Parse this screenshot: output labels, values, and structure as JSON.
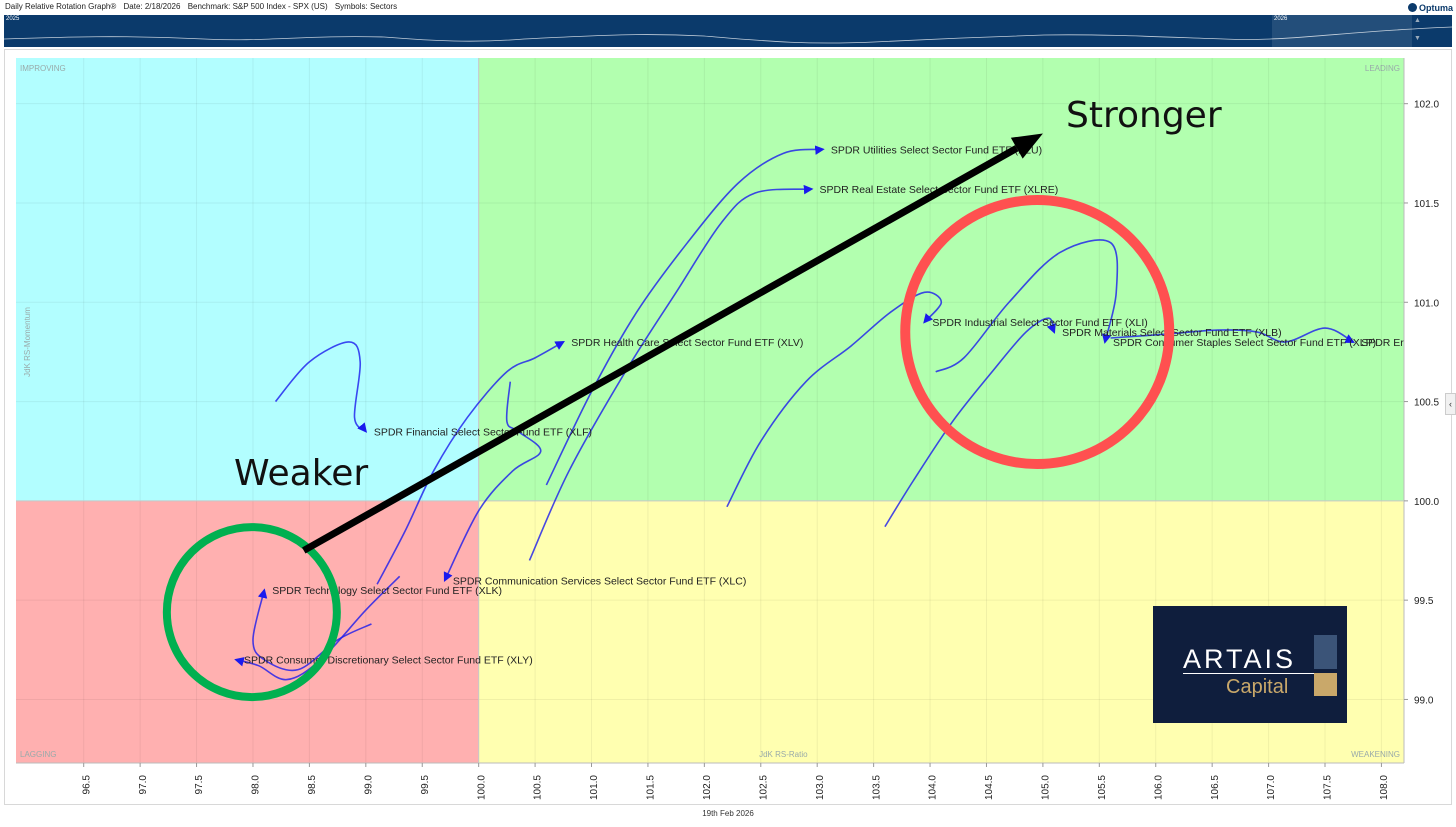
{
  "header": {
    "title": "Daily Relative Rotation Graph®",
    "date": "Date: 2/18/2026",
    "benchmark": "Benchmark: S&P 500 Index - SPX (US)",
    "symbols": "Symbols: Sectors",
    "logo_text": "Optuma"
  },
  "navigator": {
    "year_left": "2025",
    "year_right": "2026",
    "background": "#0b3a6b"
  },
  "chart_data": {
    "type": "scatter",
    "subtype": "relative-rotation-graph",
    "xlabel": "JdK RS-Ratio",
    "ylabel": "JdK RS-Momentum",
    "xlim": [
      95.9,
      108.2
    ],
    "ylim": [
      98.68,
      102.23
    ],
    "xticks": [
      "96.5",
      "97.0",
      "97.5",
      "98.0",
      "98.5",
      "99.0",
      "99.5",
      "100.0",
      "100.5",
      "101.0",
      "101.5",
      "102.0",
      "102.5",
      "103.0",
      "103.5",
      "104.0",
      "104.5",
      "105.0",
      "105.5",
      "106.0",
      "106.5",
      "107.0",
      "107.5",
      "108.0"
    ],
    "yticks": [
      "102.0",
      "101.5",
      "101.0",
      "100.5",
      "100.0",
      "99.5",
      "99.0"
    ],
    "quadrants": {
      "improving": {
        "label": "IMPROVING",
        "color": "#b2feff"
      },
      "leading": {
        "label": "LEADING",
        "color": "#b2ffaf"
      },
      "lagging": {
        "label": "LAGGING",
        "color": "#ffb0b0"
      },
      "weakening": {
        "label": "WEAKENING",
        "color": "#ffffb0"
      }
    },
    "tail_color": "#1a1aee",
    "series": [
      {
        "name": "SPDR Utilities Select Sector Fund ETF (XLU)",
        "tail": [
          [
            100.6,
            100.08
          ],
          [
            101.0,
            100.55
          ],
          [
            101.4,
            100.95
          ],
          [
            101.85,
            101.3
          ],
          [
            102.3,
            101.6
          ],
          [
            102.7,
            101.75
          ],
          [
            103.05,
            101.77
          ]
        ]
      },
      {
        "name": "SPDR Real Estate Select Sector Fund ETF (XLRE)",
        "tail": [
          [
            100.45,
            99.7
          ],
          [
            100.8,
            100.15
          ],
          [
            101.3,
            100.65
          ],
          [
            101.75,
            101.05
          ],
          [
            102.15,
            101.4
          ],
          [
            102.45,
            101.55
          ],
          [
            102.95,
            101.57
          ]
        ]
      },
      {
        "name": "SPDR Industrial Select Sector Fund ETF (XLI)",
        "tail": [
          [
            102.2,
            99.97
          ],
          [
            102.5,
            100.3
          ],
          [
            102.9,
            100.6
          ],
          [
            103.3,
            100.78
          ],
          [
            103.65,
            100.95
          ],
          [
            103.95,
            101.05
          ],
          [
            104.1,
            101.0
          ],
          [
            103.95,
            100.9
          ]
        ]
      },
      {
        "name": "SPDR Materials Select Sector Fund ETF (XLB)",
        "tail": [
          [
            103.6,
            99.87
          ],
          [
            103.85,
            100.1
          ],
          [
            104.2,
            100.4
          ],
          [
            104.55,
            100.65
          ],
          [
            104.85,
            100.85
          ],
          [
            105.05,
            100.92
          ],
          [
            105.1,
            100.85
          ]
        ]
      },
      {
        "name": "SPDR Consumer Staples Select Sector Fund ETF (XLP)",
        "tail": [
          [
            104.05,
            100.65
          ],
          [
            104.3,
            100.72
          ],
          [
            104.7,
            101.0
          ],
          [
            105.15,
            101.25
          ],
          [
            105.6,
            101.3
          ],
          [
            105.65,
            101.05
          ],
          [
            105.55,
            100.8
          ]
        ]
      },
      {
        "name": "SPDR Energy Select Sector Fund ETF (XLE)",
        "tail": [
          [
            105.6,
            100.82
          ],
          [
            106.1,
            100.84
          ],
          [
            106.55,
            100.86
          ],
          [
            106.9,
            100.85
          ],
          [
            107.15,
            100.8
          ],
          [
            107.5,
            100.87
          ],
          [
            107.75,
            100.8
          ]
        ]
      },
      {
        "name": "SPDR Health Care Select Sector Fund ETF (XLV)",
        "tail": [
          [
            99.1,
            99.58
          ],
          [
            99.35,
            99.85
          ],
          [
            99.6,
            100.15
          ],
          [
            99.9,
            100.42
          ],
          [
            100.25,
            100.65
          ],
          [
            100.5,
            100.72
          ],
          [
            100.75,
            100.8
          ]
        ]
      },
      {
        "name": "SPDR Financial Select Sector Fund ETF (XLF)",
        "tail": [
          [
            98.2,
            100.5
          ],
          [
            98.5,
            100.7
          ],
          [
            98.85,
            100.8
          ],
          [
            98.95,
            100.7
          ],
          [
            98.9,
            100.42
          ],
          [
            99.0,
            100.35
          ]
        ]
      },
      {
        "name": "SPDR Communication Services Select Sector Fund ETF (XLC)",
        "tail": [
          [
            100.28,
            100.6
          ],
          [
            100.25,
            100.4
          ],
          [
            100.35,
            100.35
          ],
          [
            100.55,
            100.25
          ],
          [
            100.3,
            100.15
          ],
          [
            100.0,
            99.95
          ],
          [
            99.7,
            99.6
          ]
        ]
      },
      {
        "name": "SPDR Technology Select Sector Fund ETF (XLK)",
        "tail": [
          [
            99.05,
            99.38
          ],
          [
            98.75,
            99.3
          ],
          [
            98.4,
            99.15
          ],
          [
            98.1,
            99.2
          ],
          [
            98.0,
            99.3
          ],
          [
            98.1,
            99.55
          ]
        ]
      },
      {
        "name": "SPDR Consumer Discretionary Select Sector Fund ETF (XLY)",
        "tail": [
          [
            99.3,
            99.62
          ],
          [
            99.0,
            99.45
          ],
          [
            98.6,
            99.2
          ],
          [
            98.3,
            99.1
          ],
          [
            98.05,
            99.17
          ],
          [
            97.85,
            99.2
          ]
        ]
      }
    ],
    "visible_labels": [
      "SPDR Utilities Select Sector Fund ETF (XLU)",
      "SPDR Real Estate Select Sector Fund ETF (XLRE)",
      "SPDR Industrial Select Sector Fund ETF (XLI)",
      "SPDR Materials Select Sector Fund ETF (XLB)",
      "SPDR Consumer Staples Select Sector Fund ETF (XLP)",
      "SPDR Er",
      "SPDR Health Care Select Sector Fund ETF (XLV)",
      "SPDR Financial Select Sector Fund ETF (XLF)",
      "SPDR Communication Services Select Sector Fund ETF (XLC)",
      "SPDR Technology Select Sector Fund ETF (XLK)",
      "SPDR Consumer Discretionary Select Sector Fund ETF (XLY)"
    ],
    "annotations": {
      "stronger": "Stronger",
      "weaker": "Weaker",
      "arrow_from": [
        98.45,
        99.75
      ],
      "arrow_to": [
        105.0,
        101.85
      ],
      "arrow_color": "#000000",
      "weak_circle": {
        "center": [
          97.99,
          99.44
        ],
        "color": "#00b050"
      },
      "strong_circle": {
        "center": [
          104.95,
          100.85
        ],
        "color": "#ff5050"
      }
    }
  },
  "brand": {
    "name": "ARTAIS",
    "sub": "Capital"
  },
  "footer": {
    "date_label": "19th Feb 2026"
  }
}
